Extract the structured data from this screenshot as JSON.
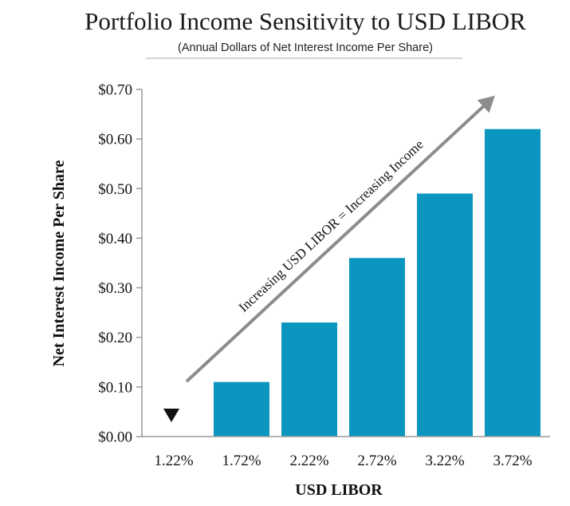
{
  "chart_data": {
    "type": "bar",
    "title": "Portfolio Income Sensitivity to USD LIBOR",
    "subtitle": "(Annual Dollars of Net Interest Income Per Share)",
    "xlabel": "USD LIBOR",
    "ylabel": "Net Interest Income Per Share",
    "categories": [
      "1.22%",
      "1.72%",
      "2.22%",
      "2.72%",
      "3.22%",
      "3.72%"
    ],
    "values": [
      0,
      0.11,
      0.23,
      0.36,
      0.49,
      0.62
    ],
    "ylim": [
      0,
      0.7
    ],
    "yticks": [
      0,
      0.1,
      0.2,
      0.3,
      0.4,
      0.5,
      0.6,
      0.7
    ],
    "ytick_labels": [
      "$0.00",
      "$0.10",
      "$0.20",
      "$0.30",
      "$0.40",
      "$0.50",
      "$0.60",
      "$0.70"
    ],
    "grid": false,
    "legend": "none",
    "bar_color": "#0a96bf",
    "annotation": {
      "text": "Increasing USD LIBOR = Increasing Income",
      "arrow_color": "#8c8c8c"
    },
    "current_marker": {
      "category": "1.22%",
      "shape": "down-triangle",
      "color": "#111111"
    }
  }
}
